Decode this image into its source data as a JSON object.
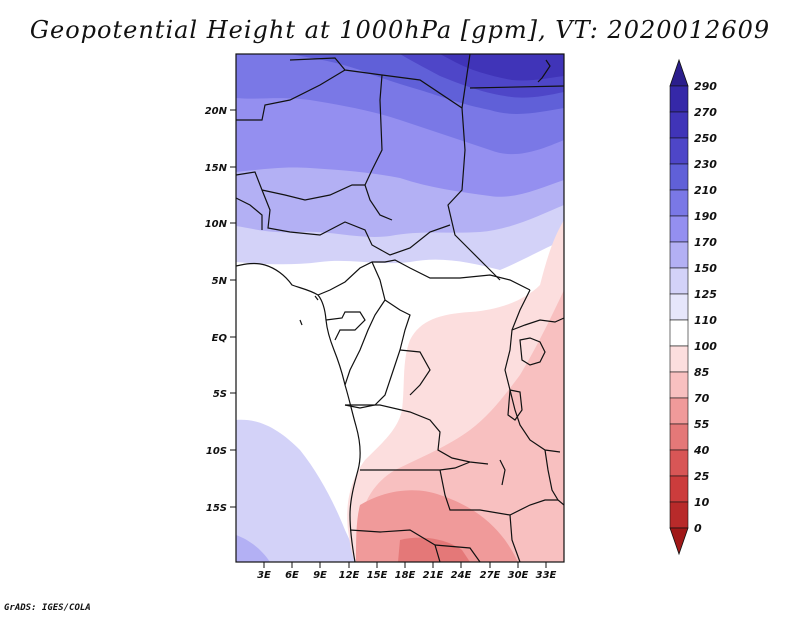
{
  "title": "Geopotential Height at 1000hPa [gpm], VT: 2020012609",
  "credit": "GrADS: IGES/COLA",
  "map": {
    "lat_ticks": [
      "20N",
      "15N",
      "10N",
      "5N",
      "EQ",
      "5S",
      "10S",
      "15S"
    ],
    "lon_ticks": [
      "3E",
      "6E",
      "9E",
      "12E",
      "15E",
      "18E",
      "21E",
      "24E",
      "27E",
      "30E",
      "33E"
    ]
  },
  "colorbar": {
    "labels": [
      "290",
      "270",
      "250",
      "230",
      "210",
      "190",
      "170",
      "150",
      "125",
      "110",
      "100",
      "85",
      "70",
      "55",
      "40",
      "25",
      "10",
      "0"
    ],
    "colors": [
      "#2b1e8c",
      "#3528a8",
      "#4034b8",
      "#4e46c8",
      "#6060d8",
      "#7a78e6",
      "#948ff0",
      "#b3b0f4",
      "#d3d2f8",
      "#ffffff",
      "#fcdede",
      "#f8c0c0",
      "#f09a9a",
      "#e47878",
      "#d85656",
      "#cc3c3c",
      "#b82a2a",
      "#a01818",
      "#8c1010"
    ]
  }
}
